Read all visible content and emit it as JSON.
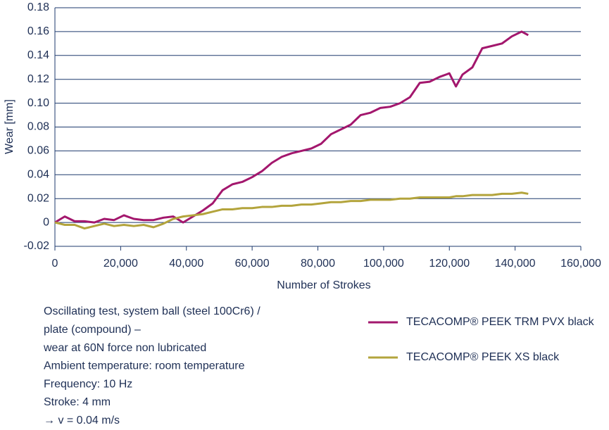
{
  "chart_data": {
    "type": "line",
    "y_label": "Wear [mm]",
    "x_label": "Number of Strokes",
    "xlim": [
      0,
      160000
    ],
    "ylim": [
      -0.02,
      0.18
    ],
    "xticks": [
      0,
      {
        "value": 20000,
        "label": "20,000"
      },
      {
        "value": 40000,
        "label": "40,000"
      },
      {
        "value": 60000,
        "label": "60,000"
      },
      {
        "value": 80000,
        "label": "80,000"
      },
      {
        "value": 100000,
        "label": "100,000"
      },
      {
        "value": 120000,
        "label": "120,000"
      },
      {
        "value": 140000,
        "label": "140,000"
      },
      {
        "value": 160000,
        "label": "160,000"
      }
    ],
    "yticks": [
      -0.02,
      0,
      0.02,
      0.04,
      0.06,
      0.08,
      {
        "value": 0.1,
        "label": "0.10"
      },
      0.12,
      0.14,
      0.16,
      0.18
    ],
    "grid": true,
    "x": [
      0,
      3000,
      6000,
      9000,
      12000,
      15000,
      18000,
      21000,
      24000,
      27000,
      30000,
      33000,
      36000,
      39000,
      42000,
      45000,
      48000,
      51000,
      54000,
      57000,
      60000,
      63000,
      66000,
      69000,
      72000,
      75000,
      78000,
      81000,
      84000,
      87000,
      90000,
      93000,
      96000,
      99000,
      102000,
      105000,
      108000,
      111000,
      114000,
      117000,
      120000,
      122000,
      124000,
      127000,
      130000,
      133000,
      136000,
      139000,
      142000,
      144000
    ],
    "series": [
      {
        "name": "TECACOMP® PEEK TRM PVX black",
        "color": "#a3176d",
        "values": [
          0,
          0.005,
          0.001,
          0.001,
          0,
          0.003,
          0.002,
          0.006,
          0.003,
          0.002,
          0.002,
          0.004,
          0.005,
          0,
          0.005,
          0.01,
          0.016,
          0.027,
          0.032,
          0.034,
          0.038,
          0.043,
          0.05,
          0.055,
          0.058,
          0.06,
          0.062,
          0.066,
          0.074,
          0.078,
          0.082,
          0.09,
          0.092,
          0.096,
          0.097,
          0.1,
          0.105,
          0.117,
          0.118,
          0.122,
          0.125,
          0.114,
          0.124,
          0.13,
          0.146,
          0.148,
          0.15,
          0.156,
          0.16,
          0.157
        ]
      },
      {
        "name": "TECACOMP® PEEK XS black",
        "color": "#b3a43c",
        "values": [
          0,
          -0.002,
          -0.002,
          -0.005,
          -0.003,
          -0.001,
          -0.003,
          -0.002,
          -0.003,
          -0.002,
          -0.004,
          -0.001,
          0.003,
          0.005,
          0.006,
          0.007,
          0.009,
          0.011,
          0.011,
          0.012,
          0.012,
          0.013,
          0.013,
          0.014,
          0.014,
          0.015,
          0.015,
          0.016,
          0.017,
          0.017,
          0.018,
          0.018,
          0.019,
          0.019,
          0.019,
          0.02,
          0.02,
          0.021,
          0.021,
          0.021,
          0.021,
          0.022,
          0.022,
          0.023,
          0.023,
          0.023,
          0.024,
          0.024,
          0.025,
          0.024
        ]
      }
    ],
    "annotation": [
      "Oscillating test, system ball (steel 100Cr6) /",
      "plate (compound) –",
      "wear at 60N force non lubricated",
      "Ambient temperature: room temperature",
      "Frequency: 10 Hz",
      "Stroke: 4 mm",
      "→  v = 0.04 m/s"
    ]
  }
}
